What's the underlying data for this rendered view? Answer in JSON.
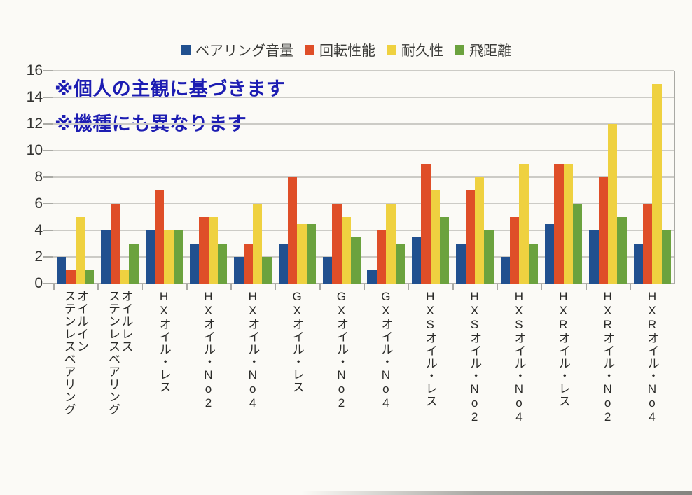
{
  "annotations": {
    "note1": "※個人の主観に基づきます",
    "note2": "※機種にも異なります"
  },
  "annotation_color": "#1d1db2",
  "chart_data": {
    "type": "bar",
    "title": "",
    "xlabel": "",
    "ylabel": "",
    "ylim": [
      0,
      16
    ],
    "ytick_step": 2,
    "grid": true,
    "legend_position": "top",
    "categories": [
      "オイルイン\nステンレスベアリング",
      "オイルレス\nステンレスベアリング",
      "HXオイル・レス",
      "HXオイル・No2",
      "HXオイル・No4",
      "GXオイル・レス",
      "GXオイル・No2",
      "GXオイル・No4",
      "HXSオイル・レス",
      "HXSオイル・No2",
      "HXSオイル・No4",
      "HXRオイル・レス",
      "HXRオイル・No2",
      "HXRオイル・No4"
    ],
    "series": [
      {
        "name": "ベアリング音量",
        "color": "#21508f",
        "values": [
          2,
          4,
          4,
          3,
          2,
          3,
          2,
          1,
          3.5,
          3,
          2,
          4.5,
          4,
          3
        ]
      },
      {
        "name": "回転性能",
        "color": "#df4e28",
        "values": [
          1,
          6,
          7,
          5,
          3,
          8,
          6,
          4,
          9,
          7,
          5,
          9,
          8,
          6
        ]
      },
      {
        "name": "耐久性",
        "color": "#efd140",
        "values": [
          5,
          1,
          4,
          5,
          6,
          4.5,
          5,
          6,
          7,
          8,
          9,
          9,
          12,
          15
        ]
      },
      {
        "name": "飛距離",
        "color": "#6ba23e",
        "values": [
          1,
          3,
          4,
          3,
          2,
          4.5,
          3.5,
          3,
          5,
          4,
          3,
          6,
          5,
          4
        ]
      }
    ]
  }
}
